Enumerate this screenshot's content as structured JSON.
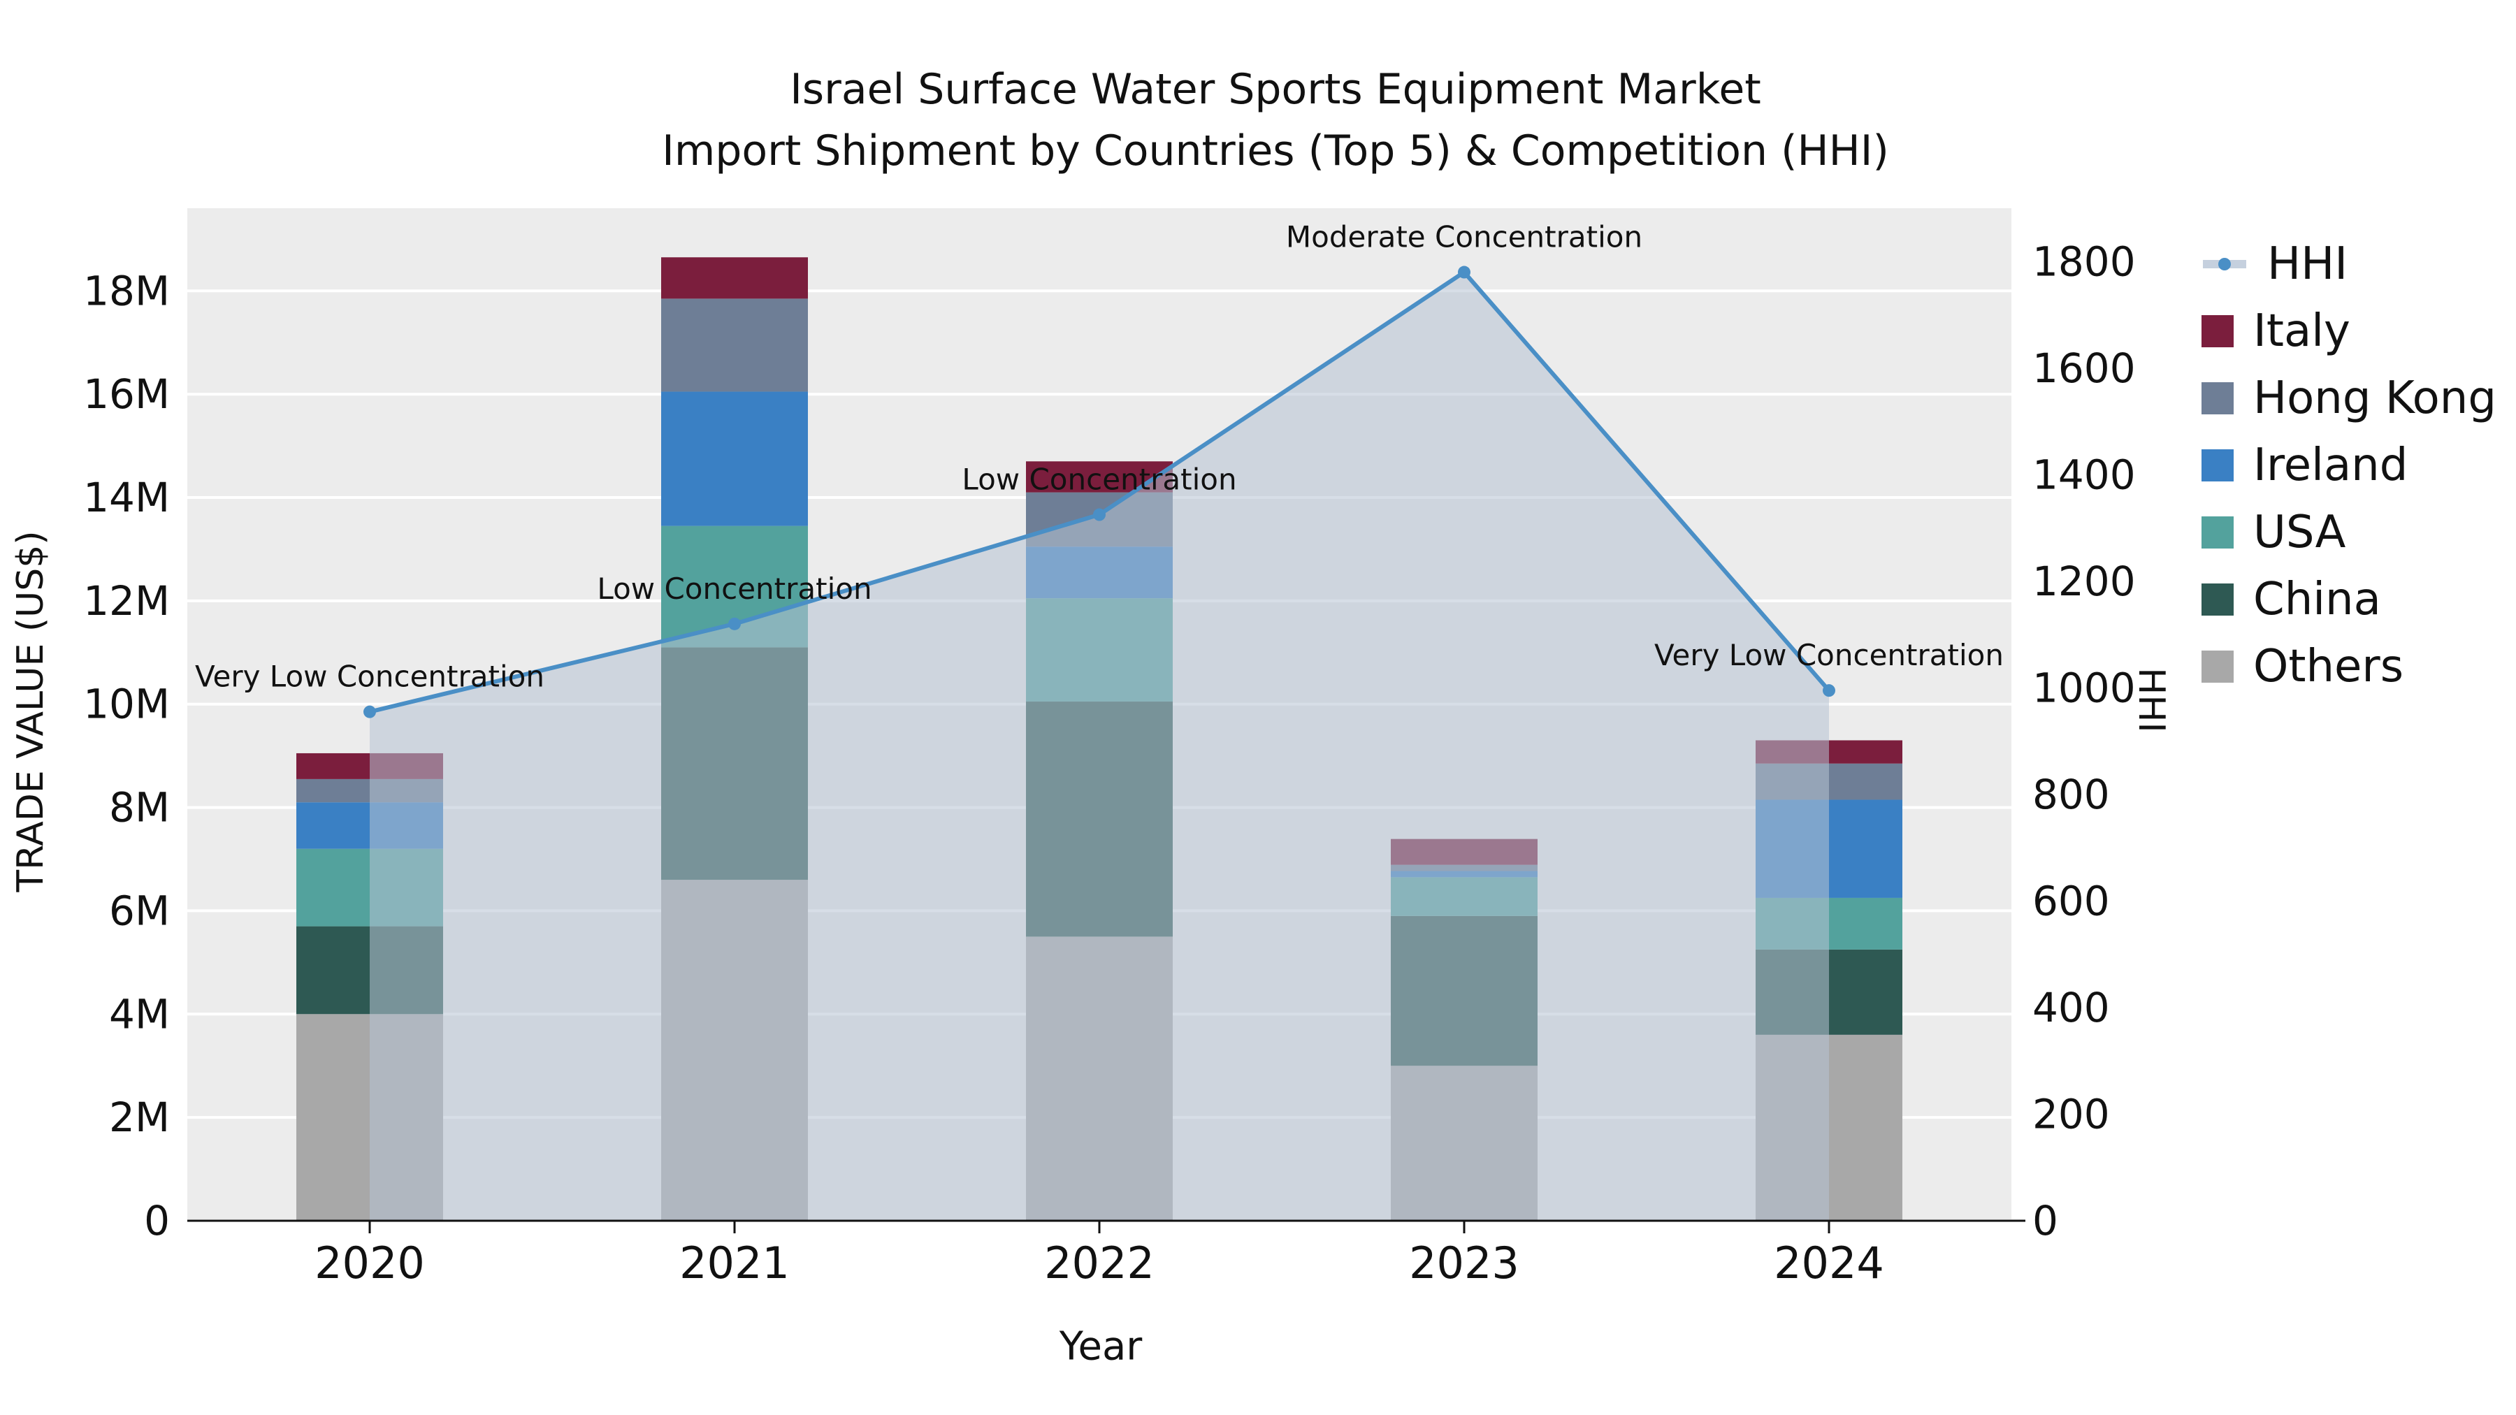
{
  "title": {
    "line1": "Israel Surface Water Sports Equipment Market",
    "line2": "Import Shipment by Countries (Top 5) & Competition (HHI)"
  },
  "chart_data": {
    "type": "combo: stacked bar (trade value by country) + line with area fill (HHI), dual y-axes",
    "categories": [
      "2020",
      "2021",
      "2022",
      "2023",
      "2024"
    ],
    "x_label": "Year",
    "y_left": {
      "label": "TRADE VALUE (US$)",
      "ticks": [
        "0",
        "2M",
        "4M",
        "6M",
        "8M",
        "10M",
        "12M",
        "14M",
        "16M",
        "18M"
      ],
      "tick_values": [
        0,
        2000000,
        4000000,
        6000000,
        8000000,
        10000000,
        12000000,
        14000000,
        16000000,
        18000000
      ],
      "max": 19600000
    },
    "y_right": {
      "label": "HHI",
      "ticks": [
        "0",
        "200",
        "400",
        "600",
        "800",
        "1000",
        "1200",
        "1400",
        "1600",
        "1800"
      ],
      "tick_values": [
        0,
        200,
        400,
        600,
        800,
        1000,
        1200,
        1400,
        1600,
        1800
      ],
      "max": 1900
    },
    "bar_series": [
      {
        "name": "Others",
        "color": "#a8a8a8",
        "values": [
          4000000,
          6600000,
          5500000,
          3000000,
          3600000
        ]
      },
      {
        "name": "China",
        "color": "#2e5953",
        "values": [
          1700000,
          4500000,
          4550000,
          2900000,
          1650000
        ]
      },
      {
        "name": "USA",
        "color": "#53a29d",
        "values": [
          1500000,
          2350000,
          2000000,
          750000,
          1000000
        ]
      },
      {
        "name": "Ireland",
        "color": "#3a80c4",
        "values": [
          900000,
          2600000,
          1000000,
          120000,
          1900000
        ]
      },
      {
        "name": "Hong Kong",
        "color": "#6e7e96",
        "values": [
          450000,
          1800000,
          1050000,
          120000,
          700000
        ]
      },
      {
        "name": "Italy",
        "color": "#7b1e3d",
        "values": [
          500000,
          800000,
          600000,
          500000,
          450000
        ]
      }
    ],
    "hhi_line": {
      "name": "HHI",
      "color": "#4a8fc6",
      "marker_color": "#4a8fc6",
      "area_fill": "rgba(183,195,211,0.55)",
      "legend_line_color": "#c5d0de",
      "values": [
        955,
        1120,
        1325,
        1780,
        995
      ],
      "annotations": [
        "Very Low Concentration",
        "Low Concentration",
        "Low Concentration",
        "Moderate Concentration",
        "Very Low Concentration"
      ]
    },
    "legend_order": [
      "HHI",
      "Italy",
      "Hong Kong",
      "Ireland",
      "USA",
      "China",
      "Others"
    ],
    "plot_background": "#ececec",
    "grid_color": "#ffffff",
    "grid": "horizontal white gridlines on light gray panel",
    "legend_position": "outside top-right"
  }
}
